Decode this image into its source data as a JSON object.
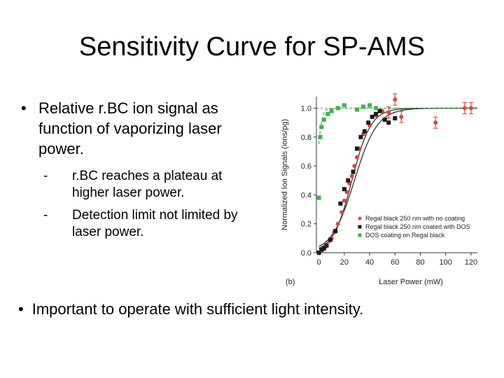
{
  "slide": {
    "title": "Sensitivity Curve for SP-AMS",
    "bullet_marker": "•",
    "bullets": [
      {
        "text": "Relative r.BC ion signal as function of vaporizing laser power."
      }
    ],
    "sub_marker": "-",
    "sub_bullets": [
      "r.BC reaches a plateau at higher laser power.",
      "Detection limit not limited by laser power."
    ],
    "bottom_bullet": "Important to operate with sufficient light intensity."
  },
  "chart_data": {
    "type": "scatter",
    "panel_label": "(b)",
    "xlabel": "Laser Power (mW)",
    "ylabel": "Normalized Ion Signals (ions/pg)",
    "xlim": [
      -2,
      125
    ],
    "ylim": [
      0,
      1.08
    ],
    "xticks": [
      "0",
      "20",
      "40",
      "60",
      "80",
      "100",
      "120"
    ],
    "yticks": [
      "0.0",
      "0.2",
      "0.4",
      "0.6",
      "0.8",
      "1.0"
    ],
    "reference_line_y": 1.0,
    "series": [
      {
        "name": "Regal black 250 nm with no coating",
        "color": "#e0463a",
        "marker": "circle",
        "points": [
          [
            3,
            0.02
          ],
          [
            5,
            0.04
          ],
          [
            8,
            0.08
          ],
          [
            10,
            0.1
          ],
          [
            12,
            0.14
          ],
          [
            15,
            0.2
          ],
          [
            18,
            0.28
          ],
          [
            20,
            0.36
          ],
          [
            22,
            0.42
          ],
          [
            24,
            0.48
          ],
          [
            26,
            0.53
          ],
          [
            28,
            0.6
          ],
          [
            30,
            0.66
          ],
          [
            32,
            0.72
          ],
          [
            35,
            0.82
          ],
          [
            40,
            0.88
          ],
          [
            45,
            0.95
          ],
          [
            50,
            0.98
          ],
          [
            55,
            0.97
          ],
          [
            60,
            1.06
          ],
          [
            65,
            0.94
          ],
          [
            92,
            0.9
          ],
          [
            115,
            1.0
          ],
          [
            120,
            1.0
          ]
        ]
      },
      {
        "name": "Regal black 250 nm coated with DOS",
        "color": "#1a1a1a",
        "marker": "square",
        "points": [
          [
            0,
            0.0
          ],
          [
            2,
            0.02
          ],
          [
            4,
            0.03
          ],
          [
            6,
            0.05
          ],
          [
            9,
            0.09
          ],
          [
            13,
            0.15
          ],
          [
            17,
            0.34
          ],
          [
            20,
            0.44
          ],
          [
            23,
            0.5
          ],
          [
            27,
            0.56
          ],
          [
            30,
            0.72
          ],
          [
            33,
            0.8
          ],
          [
            36,
            0.84
          ],
          [
            39,
            0.9
          ],
          [
            42,
            0.94
          ],
          [
            45,
            0.96
          ],
          [
            48,
            0.98
          ],
          [
            52,
            0.92
          ],
          [
            55,
            0.9
          ],
          [
            60,
            0.93
          ]
        ]
      },
      {
        "name": "DOS coating on Regal black",
        "color": "#3cb34a",
        "marker": "square",
        "points": [
          [
            0,
            0.38
          ],
          [
            1,
            0.8
          ],
          [
            2,
            0.87
          ],
          [
            4,
            0.92
          ],
          [
            7,
            0.96
          ],
          [
            10,
            0.98
          ],
          [
            15,
            1.0
          ],
          [
            20,
            1.02
          ],
          [
            30,
            0.99
          ],
          [
            35,
            1.01
          ],
          [
            40,
            1.02
          ],
          [
            45,
            1.0
          ]
        ]
      }
    ],
    "fits": [
      {
        "series": "Regal black 250 nm with no coating",
        "style": "solid",
        "color": "#333333"
      },
      {
        "series": "Regal black 250 nm coated with DOS",
        "style": "solid",
        "color": "#333333"
      },
      {
        "series": "DOS coating on Regal black",
        "style": "dashed",
        "color": "#3cb34a"
      }
    ],
    "legend_position": "bottom-right"
  }
}
